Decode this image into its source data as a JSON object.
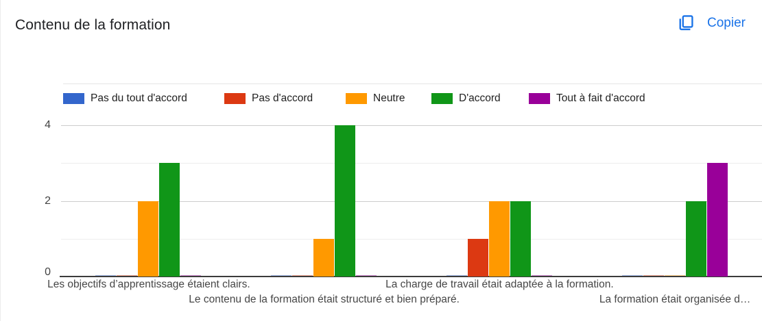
{
  "header": {
    "title": "Contenu de la formation",
    "copy_label": "Copier",
    "accent_color": "#1a73e8"
  },
  "chart_data": {
    "type": "bar",
    "title": "Contenu de la formation",
    "categories": [
      "Les objectifs d’apprentissage étaient clairs.",
      "Le contenu de la formation était structuré et bien préparé.",
      "La charge de travail était adaptée à la formation.",
      "La formation était organisée d…"
    ],
    "series": [
      {
        "name": "Pas du tout d'accord",
        "color": "#3366CC",
        "values": [
          0,
          0,
          0,
          0
        ]
      },
      {
        "name": "Pas d'accord",
        "color": "#DC3912",
        "values": [
          0,
          0,
          1,
          0
        ]
      },
      {
        "name": "Neutre",
        "color": "#FF9900",
        "values": [
          2,
          1,
          2,
          0
        ]
      },
      {
        "name": "D'accord",
        "color": "#109618",
        "values": [
          3,
          4,
          2,
          2
        ]
      },
      {
        "name": "Tout à fait d'accord",
        "color": "#990099",
        "values": [
          0,
          0,
          0,
          3
        ]
      }
    ],
    "ylim": [
      0,
      4
    ],
    "yticks": [
      0,
      2,
      4
    ],
    "grid": true,
    "legend_position": "top",
    "xlabel": "",
    "ylabel": ""
  }
}
